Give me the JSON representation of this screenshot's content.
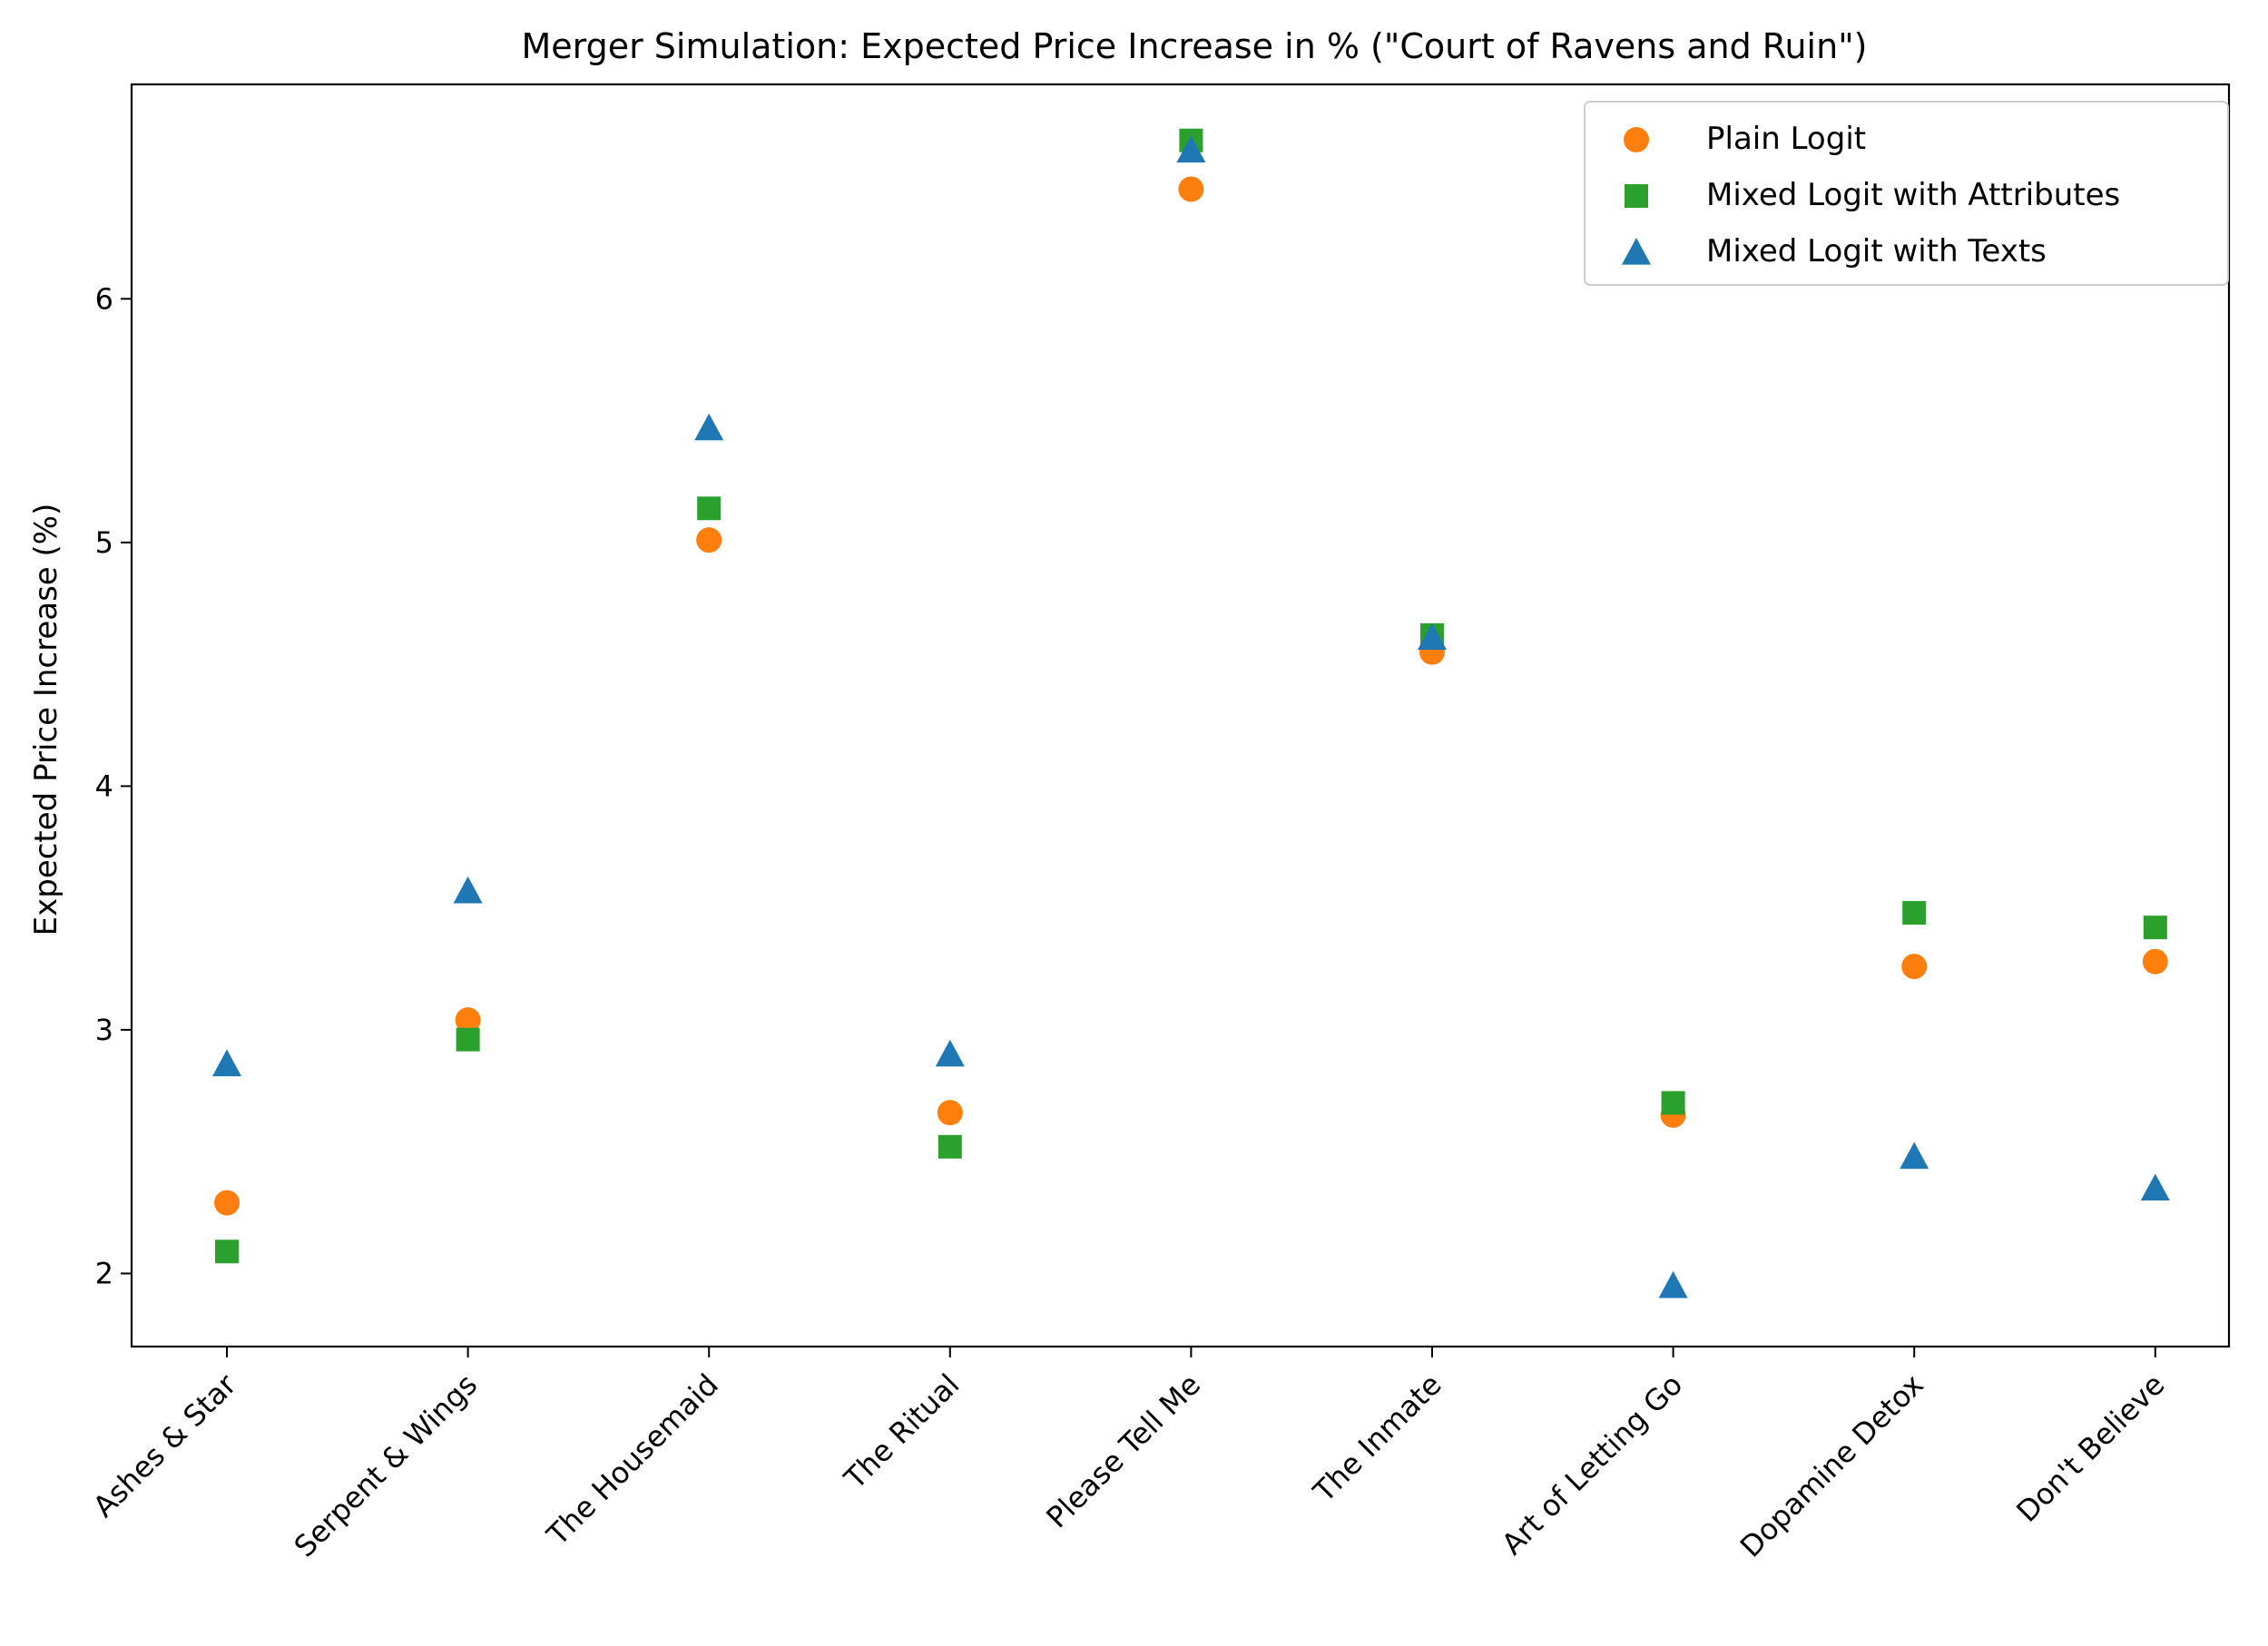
{
  "chart_data": {
    "type": "scatter",
    "title": "Merger Simulation: Expected Price Increase in % (\"Court of Ravens and Ruin\")",
    "xlabel": "",
    "ylabel": "Expected Price Increase (%)",
    "categories": [
      "Ashes & Star",
      "Serpent & Wings",
      "The Housemaid",
      "The Ritual",
      "Please Tell Me",
      "The Inmate",
      "Art of Letting Go",
      "Dopamine Detox",
      "Don't Believe"
    ],
    "ylim": [
      1.7,
      6.88
    ],
    "yticks": [
      "2",
      "3",
      "4",
      "5",
      "6"
    ],
    "grid": false,
    "legend_position": "top-right",
    "series": [
      {
        "name": "Plain Logit",
        "marker": "circle",
        "color": "#ff7f0e",
        "values": [
          2.29,
          3.04,
          5.01,
          2.66,
          6.45,
          4.55,
          2.65,
          3.26,
          3.28
        ]
      },
      {
        "name": "Mixed Logit with Attributes",
        "marker": "square",
        "color": "#2ca02c",
        "values": [
          2.09,
          2.96,
          5.14,
          2.52,
          6.65,
          4.62,
          2.7,
          3.48,
          3.42
        ]
      },
      {
        "name": "Mixed Logit with Texts",
        "marker": "triangle",
        "color": "#1f77b4",
        "values": [
          2.86,
          3.57,
          5.47,
          2.9,
          6.61,
          4.61,
          1.95,
          2.48,
          2.35
        ]
      }
    ]
  }
}
